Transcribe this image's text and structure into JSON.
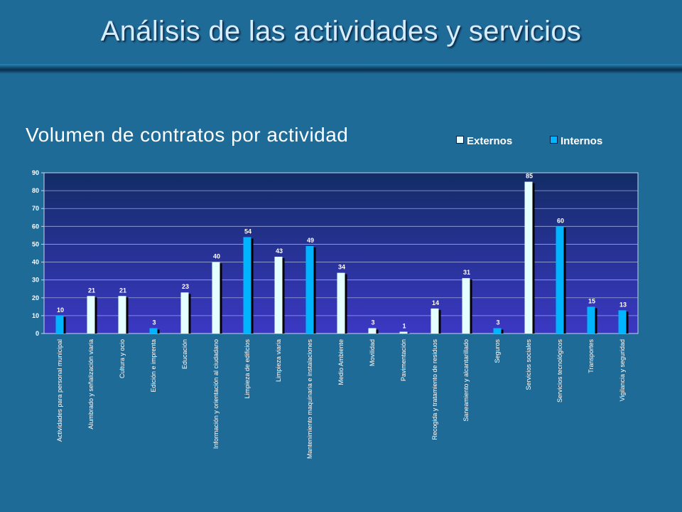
{
  "slide": {
    "title": "Análisis de las actividades y servicios"
  },
  "chart_data": {
    "type": "bar",
    "title": "Volumen de contratos por actividad",
    "categories": [
      "Actividades para personal municipal",
      "Alumbrado y señalización viaria",
      "Cultura y ocio",
      "Edición e imprenta",
      "Educación",
      "Información y orientación al ciudadano",
      "Limpieza de edificios",
      "Limpieza viaria",
      "Mantenimiento maquinaria e instalaciones",
      "Medio Ambiente",
      "Movilidad",
      "Pavimentación",
      "Recogida y tratamiento de residuos",
      "Saneamiento y alcantarillado",
      "Seguros",
      "Servicios sociales",
      "Servicios tecnológicos",
      "Transportes",
      "Vigilancia y seguridad"
    ],
    "series": [
      {
        "name": "Externos",
        "color": "#e4ffff",
        "values": [
          null,
          21,
          21,
          null,
          23,
          40,
          null,
          43,
          null,
          34,
          3,
          1,
          14,
          31,
          null,
          85,
          null,
          null,
          null
        ]
      },
      {
        "name": "Internos",
        "color": "#00b4ff",
        "values": [
          10,
          null,
          null,
          3,
          null,
          null,
          54,
          null,
          49,
          null,
          null,
          null,
          null,
          null,
          3,
          null,
          60,
          15,
          13
        ]
      }
    ],
    "ylim": [
      0,
      90
    ],
    "yticks": [
      0,
      10,
      20,
      30,
      40,
      50,
      60,
      70,
      80,
      90
    ],
    "grid": true,
    "legend": "top-right",
    "data_labels": true
  }
}
